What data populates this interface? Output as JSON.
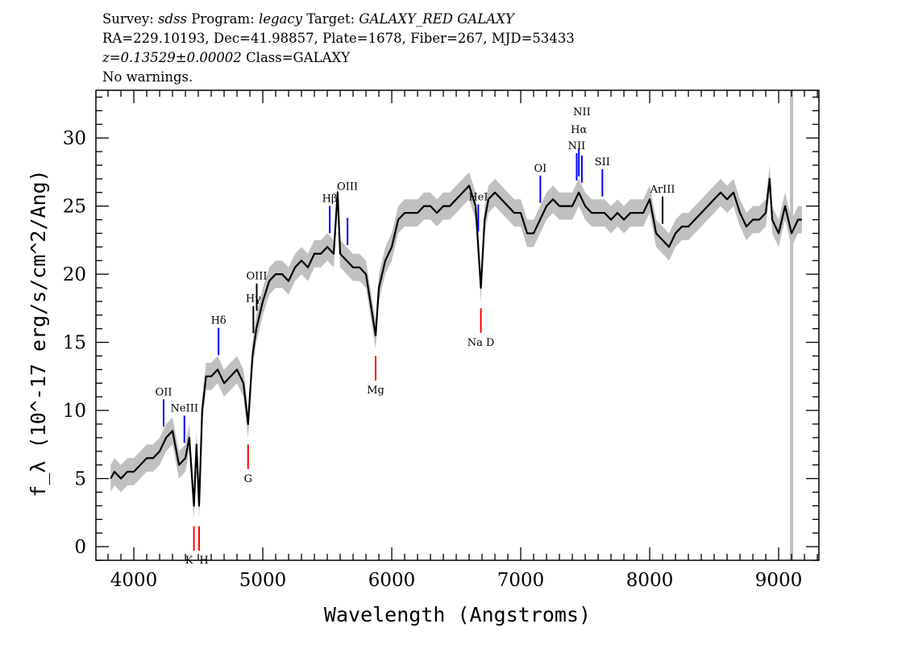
{
  "header": {
    "line1": {
      "survey_label": "Survey:",
      "survey": "sdss",
      "program_label": "Program:",
      "program": "legacy",
      "target_label": "Target:",
      "target": "GALAXY_RED GALAXY"
    },
    "line2": "RA=229.10193, Dec=41.98857, Plate=1678, Fiber=267, MJD=53433",
    "line3": {
      "redshift": "z=0.13529±0.00002",
      "class": "Class=GALAXY"
    },
    "line4": "No warnings."
  },
  "chart_data": {
    "type": "line",
    "xlabel": "Wavelength (Angstroms)",
    "ylabel": "f_λ (10^-17 erg/s/cm^2/Ang)",
    "xlim": [
      3706,
      9312
    ],
    "ylim": [
      -1.0,
      33.5
    ],
    "xticks": [
      4000,
      5000,
      6000,
      7000,
      8000,
      9000
    ],
    "yticks": [
      0,
      5,
      10,
      15,
      20,
      25,
      30
    ],
    "grid": false,
    "colors": {
      "spectrum": "#000000",
      "error_band": "#c0c0c0",
      "emission": "#0000ff",
      "absorption": "#ff0000",
      "masked": "#c0c0c0"
    },
    "error_band": 1.0,
    "masked_wavelength": 9100,
    "spectrum": {
      "x": [
        3820,
        3850,
        3900,
        3950,
        4000,
        4050,
        4100,
        4150,
        4200,
        4250,
        4300,
        4350,
        4400,
        4430,
        4466,
        4486,
        4506,
        4530,
        4560,
        4600,
        4650,
        4700,
        4750,
        4800,
        4850,
        4886,
        4920,
        4950,
        5000,
        5050,
        5100,
        5150,
        5200,
        5250,
        5300,
        5350,
        5400,
        5450,
        5500,
        5550,
        5580,
        5600,
        5650,
        5700,
        5750,
        5800,
        5850,
        5875,
        5900,
        5950,
        6000,
        6050,
        6100,
        6150,
        6200,
        6250,
        6300,
        6350,
        6400,
        6450,
        6500,
        6550,
        6600,
        6650,
        6691,
        6720,
        6750,
        6800,
        6850,
        6900,
        6950,
        7000,
        7050,
        7100,
        7150,
        7200,
        7250,
        7300,
        7350,
        7400,
        7450,
        7500,
        7550,
        7600,
        7650,
        7700,
        7750,
        7800,
        7850,
        7900,
        7950,
        8000,
        8050,
        8100,
        8150,
        8200,
        8250,
        8300,
        8350,
        8400,
        8450,
        8500,
        8550,
        8600,
        8650,
        8700,
        8750,
        8800,
        8850,
        8900,
        8930,
        8950,
        9000,
        9050,
        9100,
        9150,
        9180
      ],
      "y": [
        5,
        5.5,
        5,
        5.5,
        5.5,
        6,
        6.5,
        6.5,
        7,
        8,
        8.5,
        6,
        6.5,
        8,
        3,
        7.5,
        3,
        10,
        12.5,
        12.5,
        13,
        12,
        12.5,
        13,
        12,
        9,
        14,
        16,
        18,
        19.5,
        20,
        20,
        19.5,
        20.5,
        21,
        20.5,
        21.5,
        21.5,
        22,
        21.5,
        26,
        21.5,
        21,
        20.5,
        20.5,
        20,
        17,
        15.5,
        19,
        21,
        22,
        24,
        24.5,
        24.5,
        24.5,
        25,
        25,
        24.5,
        25,
        25,
        25.5,
        26,
        26.5,
        25,
        19,
        24,
        25.5,
        26,
        25.5,
        25,
        24.5,
        24.5,
        23,
        23,
        24,
        25,
        25.5,
        25,
        25,
        25,
        26,
        25,
        24.5,
        24.5,
        24.5,
        24,
        24.5,
        24,
        24.5,
        24.5,
        24.5,
        25.5,
        23,
        22.5,
        22,
        23,
        23.5,
        23.5,
        24,
        24.5,
        25,
        25.5,
        26,
        25.5,
        26,
        24.5,
        23.5,
        24,
        24,
        24.5,
        27,
        24,
        23,
        25,
        23,
        24,
        24
      ]
    },
    "emission_lines": [
      {
        "label": "OII",
        "wavelength": 4231,
        "color": "#0000ff"
      },
      {
        "label": "NeIII",
        "wavelength": 4392,
        "color": "#0000ff"
      },
      {
        "label": "Hδ",
        "wavelength": 4657,
        "color": "#0000ff"
      },
      {
        "label": "Hγ",
        "wavelength": 4927,
        "color": "#000000"
      },
      {
        "label": "OIII",
        "wavelength": 4953,
        "color": "#000000"
      },
      {
        "label": "Hβ",
        "wavelength": 5519,
        "color": "#0000ff"
      },
      {
        "label": "OIII",
        "wavelength": 5657,
        "color": "#0000ff"
      },
      {
        "label": "HeI",
        "wavelength": 6671,
        "color": "#0000ff"
      },
      {
        "label": "OI",
        "wavelength": 7152,
        "color": "#0000ff"
      },
      {
        "label": "NII",
        "wavelength": 7434,
        "color": "#0000ff"
      },
      {
        "label": "Hα",
        "wavelength": 7451,
        "color": "#0000ff"
      },
      {
        "label": "NII",
        "wavelength": 7474,
        "color": "#0000ff"
      },
      {
        "label": "SII",
        "wavelength": 7633,
        "color": "#0000ff"
      },
      {
        "label": "ArIII",
        "wavelength": 8100,
        "color": "#000000"
      }
    ],
    "absorption_lines": [
      {
        "label": "K",
        "wavelength": 4466
      },
      {
        "label": "H",
        "wavelength": 4506
      },
      {
        "label": "G",
        "wavelength": 4886
      },
      {
        "label": "Mg",
        "wavelength": 5875
      },
      {
        "label": "Na D",
        "wavelength": 6691
      }
    ]
  }
}
